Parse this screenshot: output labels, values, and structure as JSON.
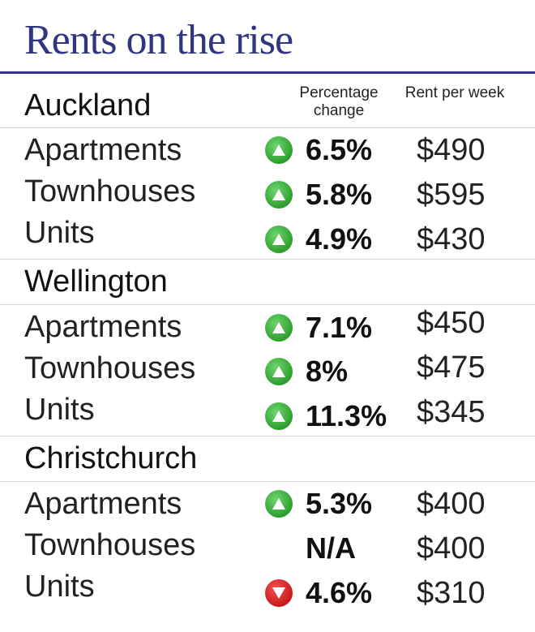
{
  "title": "Rents on the rise",
  "columns": {
    "percentage_change": "Percentage change",
    "rent_per_week": "Rent per week"
  },
  "colors": {
    "title": "#2f3580",
    "up": "#2e9e2e",
    "down": "#c81818"
  },
  "chart_data": {
    "type": "table",
    "title": "Rents on the rise",
    "columns": [
      "Percentage change",
      "Rent per week"
    ],
    "regions": [
      {
        "name": "Auckland",
        "rows": [
          {
            "type": "Apartments",
            "change": "6.5%",
            "direction": "up",
            "rent": "$490"
          },
          {
            "type": "Townhouses",
            "change": "5.8%",
            "direction": "up",
            "rent": "$595"
          },
          {
            "type": "Units",
            "change": "4.9%",
            "direction": "up",
            "rent": "$430"
          }
        ]
      },
      {
        "name": "Wellington",
        "rows": [
          {
            "type": "Apartments",
            "change": "7.1%",
            "direction": "up",
            "rent": "$450"
          },
          {
            "type": "Townhouses",
            "change": "8%",
            "direction": "up",
            "rent": "$475"
          },
          {
            "type": "Units",
            "change": "11.3%",
            "direction": "up",
            "rent": "$345"
          }
        ]
      },
      {
        "name": "Christchurch",
        "rows": [
          {
            "type": "Apartments",
            "change": "5.3%",
            "direction": "up",
            "rent": "$400"
          },
          {
            "type": "Townhouses",
            "change": "N/A",
            "direction": "none",
            "rent": "$400"
          },
          {
            "type": "Units",
            "change": "4.6%",
            "direction": "down",
            "rent": "$310"
          }
        ]
      }
    ]
  }
}
